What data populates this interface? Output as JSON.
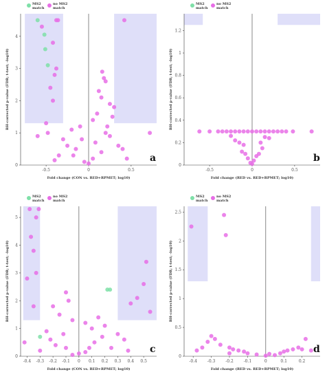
{
  "legend": {
    "ms2_match": "MS2 match",
    "no_ms2_match": "no MS2 match"
  },
  "colors": {
    "ms2_match": "#7fe0a8",
    "no_ms2_match": "#e76ee6",
    "band": "#c9c9f5"
  },
  "chart_data": [
    {
      "panel": "a",
      "type": "scatter",
      "xlabel": "Fold change (CON vs. RED+RPMET; log10)",
      "ylabel": "BH-corrected p-value (FDR; t-test; -log10)",
      "xlim": [
        -0.8,
        0.8
      ],
      "ylim": [
        0,
        4.7
      ],
      "xticks": [
        -0.5,
        0,
        0.5
      ],
      "yticks": [
        0,
        1,
        2,
        3,
        4
      ],
      "bands": [
        {
          "x": [
            -0.75,
            -0.3
          ],
          "y": [
            1.3,
            4.7
          ]
        },
        {
          "x": [
            0.3,
            0.8
          ],
          "y": [
            1.3,
            4.7
          ]
        }
      ],
      "series": [
        {
          "name": "MS2 match",
          "points": [
            [
              -0.6,
              4.5
            ],
            [
              -0.52,
              4.05
            ],
            [
              -0.51,
              3.6
            ],
            [
              -0.48,
              3.1
            ]
          ]
        },
        {
          "name": "no MS2 match",
          "points": [
            [
              -0.55,
              4.3
            ],
            [
              -0.38,
              4.5
            ],
            [
              -0.36,
              4.5
            ],
            [
              -0.42,
              3.8
            ],
            [
              -0.38,
              3.0
            ],
            [
              -0.4,
              2.8
            ],
            [
              -0.45,
              2.4
            ],
            [
              -0.42,
              2.0
            ],
            [
              -0.5,
              1.3
            ],
            [
              -0.48,
              1.0
            ],
            [
              -0.6,
              0.9
            ],
            [
              0.42,
              4.5
            ],
            [
              0.72,
              1.0
            ],
            [
              0.16,
              2.9
            ],
            [
              0.18,
              2.7
            ],
            [
              0.2,
              2.6
            ],
            [
              0.12,
              2.3
            ],
            [
              0.15,
              2.1
            ],
            [
              0.25,
              1.9
            ],
            [
              0.3,
              1.8
            ],
            [
              0.1,
              1.6
            ],
            [
              0.05,
              1.4
            ],
            [
              0.22,
              1.2
            ],
            [
              -0.1,
              1.2
            ],
            [
              -0.2,
              1.1
            ],
            [
              -0.3,
              0.8
            ],
            [
              0.35,
              0.6
            ],
            [
              0.4,
              0.5
            ],
            [
              -0.35,
              0.3
            ],
            [
              0.45,
              0.2
            ],
            [
              -0.4,
              0.15
            ],
            [
              0.25,
              0.9
            ],
            [
              -0.25,
              0.6
            ],
            [
              -0.15,
              0.5
            ],
            [
              0.15,
              0.4
            ],
            [
              0.05,
              0.2
            ],
            [
              -0.05,
              0.1
            ],
            [
              0.0,
              0.05
            ],
            [
              0.08,
              0.7
            ],
            [
              -0.08,
              0.8
            ],
            [
              0.28,
              1.5
            ],
            [
              0.2,
              1.0
            ],
            [
              -0.18,
              0.3
            ]
          ]
        }
      ]
    },
    {
      "panel": "b",
      "type": "scatter",
      "xlabel": "Fold change (RED vs. RED+RPMET; log10)",
      "ylabel": "BH-corrected p-value (FDR; t-test; -log10)",
      "xlim": [
        -0.8,
        0.8
      ],
      "ylim": [
        0,
        1.35
      ],
      "xticks": [
        -0.5,
        0,
        0.5
      ],
      "yticks": [
        0,
        0.2,
        0.4,
        0.6,
        0.8,
        1,
        1.2
      ],
      "bands": [
        {
          "x": [
            -0.8,
            -0.58
          ],
          "y": [
            1.25,
            1.35
          ]
        },
        {
          "x": [
            0.3,
            0.8
          ],
          "y": [
            1.25,
            1.35
          ]
        }
      ],
      "series": [
        {
          "name": "MS2 match",
          "points": []
        },
        {
          "name": "no MS2 match",
          "points": [
            [
              -0.62,
              0.3
            ],
            [
              -0.5,
              0.3
            ],
            [
              -0.4,
              0.3
            ],
            [
              -0.35,
              0.3
            ],
            [
              -0.3,
              0.3
            ],
            [
              -0.25,
              0.3
            ],
            [
              -0.2,
              0.3
            ],
            [
              -0.15,
              0.3
            ],
            [
              -0.1,
              0.3
            ],
            [
              -0.05,
              0.3
            ],
            [
              0.0,
              0.3
            ],
            [
              0.05,
              0.3
            ],
            [
              0.1,
              0.3
            ],
            [
              0.15,
              0.3
            ],
            [
              0.2,
              0.3
            ],
            [
              0.25,
              0.3
            ],
            [
              0.3,
              0.3
            ],
            [
              0.35,
              0.3
            ],
            [
              0.4,
              0.3
            ],
            [
              0.48,
              0.3
            ],
            [
              0.7,
              0.3
            ],
            [
              -0.2,
              0.22
            ],
            [
              -0.15,
              0.2
            ],
            [
              -0.1,
              0.18
            ],
            [
              -0.12,
              0.12
            ],
            [
              -0.08,
              0.1
            ],
            [
              0.1,
              0.2
            ],
            [
              0.12,
              0.15
            ],
            [
              0.08,
              0.1
            ],
            [
              0.05,
              0.08
            ],
            [
              -0.05,
              0.06
            ],
            [
              0.02,
              0.04
            ],
            [
              -0.02,
              0.02
            ],
            [
              0.0,
              0.01
            ],
            [
              0.15,
              0.25
            ],
            [
              -0.25,
              0.26
            ],
            [
              0.2,
              0.24
            ]
          ]
        }
      ]
    },
    {
      "panel": "c",
      "type": "scatter",
      "xlabel": "Fold change (CON vs. RED+RPMET; log10)",
      "ylabel": "BH-corrected p-value (FDR; t-test; -log10)",
      "xlim": [
        -0.45,
        0.6
      ],
      "ylim": [
        0,
        5.4
      ],
      "xticks": [
        -0.4,
        -0.3,
        -0.2,
        -0.1,
        0,
        0.1,
        0.2,
        0.3,
        0.4,
        0.5
      ],
      "yticks": [
        0,
        1,
        2,
        3,
        4,
        5
      ],
      "bands": [
        {
          "x": [
            -0.43,
            -0.3
          ],
          "y": [
            1.3,
            5.4
          ]
        },
        {
          "x": [
            0.3,
            0.6
          ],
          "y": [
            1.3,
            5.4
          ]
        }
      ],
      "series": [
        {
          "name": "MS2 match",
          "points": [
            [
              0.22,
              2.4
            ],
            [
              0.24,
              2.4
            ],
            [
              -0.3,
              0.7
            ]
          ]
        },
        {
          "name": "no MS2 match",
          "points": [
            [
              -0.38,
              5.3
            ],
            [
              -0.33,
              5.0
            ],
            [
              -0.31,
              5.3
            ],
            [
              -0.37,
              4.3
            ],
            [
              -0.35,
              3.8
            ],
            [
              -0.4,
              2.8
            ],
            [
              -0.33,
              3.0
            ],
            [
              -0.35,
              1.8
            ],
            [
              -0.42,
              0.5
            ],
            [
              0.52,
              3.4
            ],
            [
              0.5,
              2.6
            ],
            [
              0.45,
              2.1
            ],
            [
              0.55,
              1.6
            ],
            [
              0.4,
              1.9
            ],
            [
              -0.1,
              2.3
            ],
            [
              -0.08,
              2.0
            ],
            [
              -0.2,
              1.8
            ],
            [
              -0.15,
              1.5
            ],
            [
              -0.05,
              1.3
            ],
            [
              0.05,
              1.2
            ],
            [
              0.1,
              1.0
            ],
            [
              0.15,
              1.4
            ],
            [
              0.2,
              1.1
            ],
            [
              0.3,
              0.8
            ],
            [
              0.35,
              0.6
            ],
            [
              -0.25,
              0.9
            ],
            [
              -0.22,
              0.6
            ],
            [
              -0.18,
              0.4
            ],
            [
              -0.1,
              0.3
            ],
            [
              0.08,
              0.3
            ],
            [
              0.12,
              0.5
            ],
            [
              0.0,
              0.1
            ],
            [
              -0.05,
              0.05
            ],
            [
              0.05,
              0.15
            ],
            [
              0.25,
              0.3
            ],
            [
              0.38,
              0.2
            ],
            [
              -0.3,
              0.2
            ],
            [
              0.18,
              0.7
            ],
            [
              -0.12,
              0.8
            ]
          ]
        }
      ]
    },
    {
      "panel": "d",
      "type": "scatter",
      "xlabel": "Fold change (RED vs. RED+RPMET; log10)",
      "ylabel": "BH-corrected p-value (FDR; t-test; -log10)",
      "xlim": [
        -0.45,
        0.3
      ],
      "ylim": [
        0,
        2.6
      ],
      "xticks": [
        -0.4,
        -0.3,
        -0.2,
        -0.1,
        0,
        0.1,
        0.2
      ],
      "yticks": [
        0,
        0.5,
        1,
        1.5,
        2,
        2.5
      ],
      "bands": [
        {
          "x": [
            -0.43,
            -0.32
          ],
          "y": [
            1.3,
            2.6
          ]
        },
        {
          "x": [
            0.25,
            0.3
          ],
          "y": [
            1.3,
            2.6
          ]
        }
      ],
      "series": [
        {
          "name": "MS2 match",
          "points": []
        },
        {
          "name": "no MS2 match",
          "points": [
            [
              -0.41,
              2.25
            ],
            [
              -0.23,
              2.45
            ],
            [
              -0.22,
              2.1
            ],
            [
              -0.3,
              0.35
            ],
            [
              -0.28,
              0.3
            ],
            [
              -0.32,
              0.25
            ],
            [
              -0.25,
              0.2
            ],
            [
              -0.2,
              0.15
            ],
            [
              -0.18,
              0.12
            ],
            [
              -0.15,
              0.1
            ],
            [
              -0.12,
              0.08
            ],
            [
              -0.1,
              0.05
            ],
            [
              -0.05,
              0.03
            ],
            [
              0.0,
              0.01
            ],
            [
              0.05,
              0.02
            ],
            [
              0.08,
              0.05
            ],
            [
              0.1,
              0.08
            ],
            [
              0.12,
              0.1
            ],
            [
              0.15,
              0.12
            ],
            [
              0.18,
              0.15
            ],
            [
              0.2,
              0.12
            ],
            [
              0.22,
              0.3
            ],
            [
              0.25,
              0.1
            ],
            [
              -0.35,
              0.15
            ],
            [
              -0.38,
              0.1
            ],
            [
              -0.2,
              0.05
            ],
            [
              0.02,
              0.04
            ]
          ]
        }
      ]
    }
  ]
}
